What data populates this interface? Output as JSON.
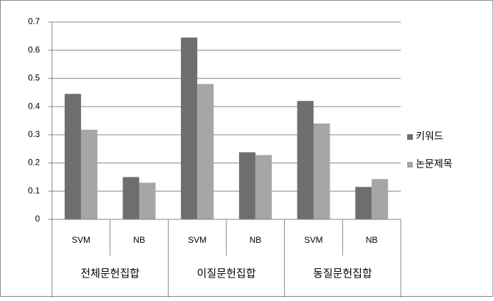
{
  "chart_data": {
    "type": "bar",
    "categories": [
      "SVM",
      "NB",
      "SVM",
      "NB",
      "SVM",
      "NB"
    ],
    "category_groups": [
      "전체문헌집합",
      "이질문헌집합",
      "동질문헌집합"
    ],
    "series": [
      {
        "name": "키워드",
        "color": "#6e6e6e",
        "values": [
          0.445,
          0.15,
          0.645,
          0.238,
          0.42,
          0.115
        ]
      },
      {
        "name": "논문제목",
        "color": "#a6a6a6",
        "values": [
          0.318,
          0.13,
          0.48,
          0.228,
          0.34,
          0.143
        ]
      }
    ],
    "ylim": [
      0,
      0.7
    ],
    "yticks": [
      0,
      0.1,
      0.2,
      0.3,
      0.4,
      0.5,
      0.6,
      0.7
    ],
    "grid": true,
    "legend": "right"
  }
}
